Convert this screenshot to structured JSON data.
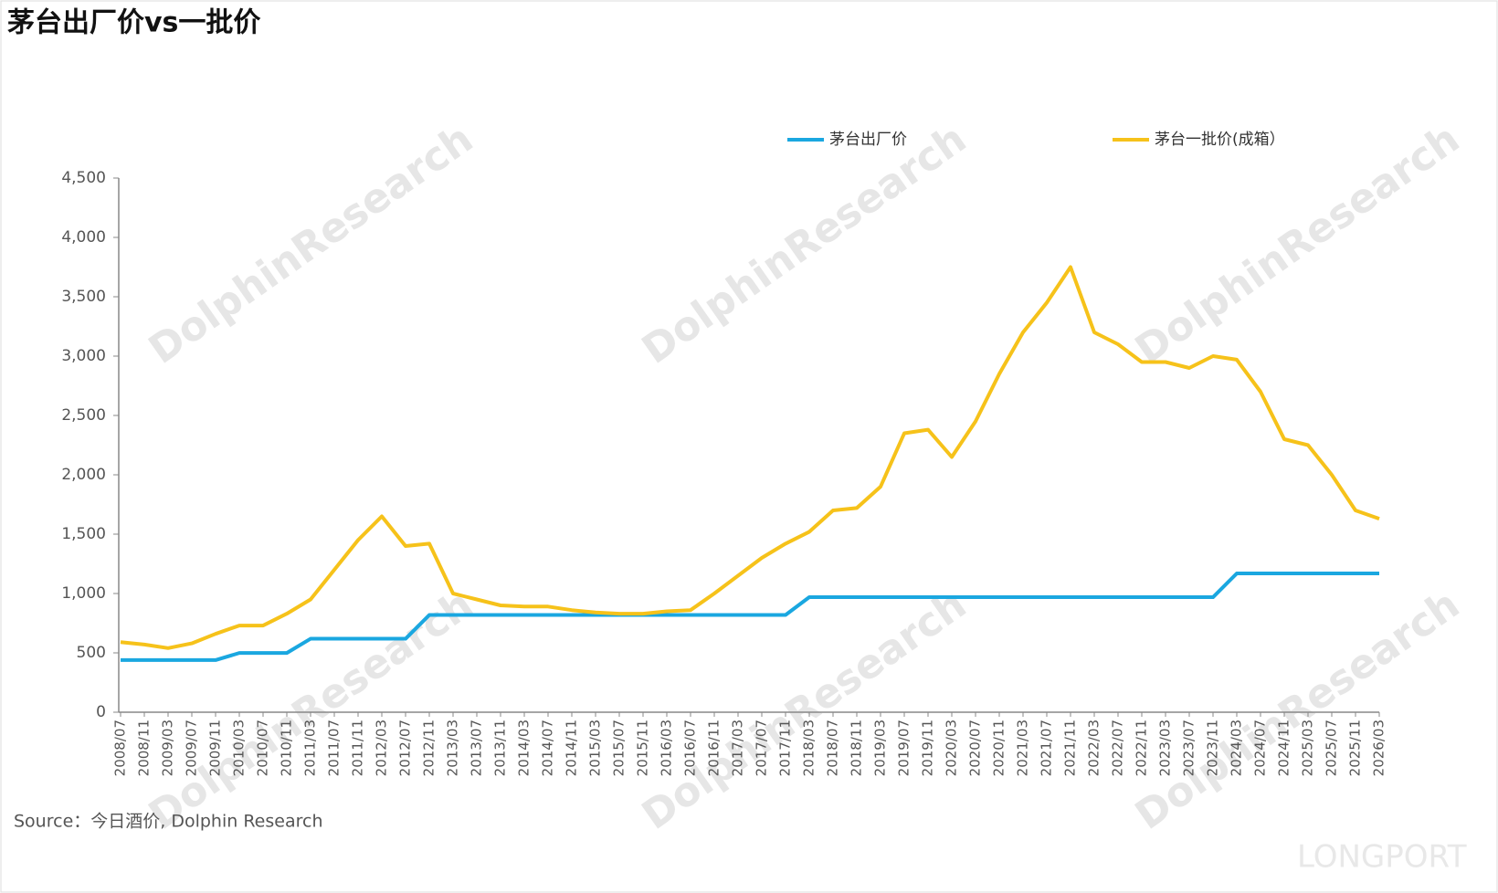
{
  "chart_data": {
    "type": "line",
    "title": "茅台出厂价vs一批价",
    "source": "Source：今日酒价, Dolphin Research",
    "watermark": "DolphinResearch",
    "brand": "LONGPORT",
    "categories": [
      "2008/07",
      "2008/11",
      "2009/03",
      "2009/07",
      "2009/11",
      "2010/03",
      "2010/07",
      "2010/11",
      "2011/03",
      "2011/07",
      "2011/11",
      "2012/03",
      "2012/07",
      "2012/11",
      "2013/03",
      "2013/07",
      "2013/11",
      "2014/03",
      "2014/07",
      "2014/11",
      "2015/03",
      "2015/07",
      "2015/11",
      "2016/03",
      "2016/07",
      "2016/11",
      "2017/03",
      "2017/07",
      "2017/11",
      "2018/03",
      "2018/07",
      "2018/11",
      "2019/03",
      "2019/07",
      "2019/11",
      "2020/03",
      "2020/07",
      "2020/11",
      "2021/03",
      "2021/07",
      "2021/11",
      "2022/03",
      "2022/07",
      "2022/11",
      "2023/03",
      "2023/07",
      "2023/11",
      "2024/03",
      "2024/07",
      "2024/11",
      "2025/03",
      "2025/07",
      "2025/11",
      "2026/03"
    ],
    "series": [
      {
        "name": "茅台出厂价",
        "color": "#1aa7e0",
        "values": [
          439,
          439,
          439,
          439,
          439,
          499,
          499,
          499,
          619,
          619,
          619,
          619,
          619,
          819,
          819,
          819,
          819,
          819,
          819,
          819,
          819,
          819,
          819,
          819,
          819,
          819,
          819,
          819,
          819,
          969,
          969,
          969,
          969,
          969,
          969,
          969,
          969,
          969,
          969,
          969,
          969,
          969,
          969,
          969,
          969,
          969,
          969,
          1169,
          1169,
          1169,
          1169,
          1169,
          1169,
          1169
        ]
      },
      {
        "name": "茅台一批价(成箱）",
        "color": "#f6c21a",
        "values": [
          590,
          570,
          540,
          580,
          660,
          730,
          730,
          830,
          950,
          1200,
          1450,
          1650,
          1400,
          1420,
          1000,
          950,
          900,
          890,
          890,
          860,
          840,
          830,
          830,
          850,
          860,
          1000,
          1150,
          1300,
          1420,
          1520,
          1700,
          1720,
          1900,
          2350,
          2380,
          2150,
          2450,
          2850,
          3200,
          3450,
          3750,
          3200,
          3100,
          2950,
          2950,
          2900,
          3000,
          2970,
          2700,
          2300,
          2250,
          2000,
          1700,
          1630
        ]
      }
    ],
    "ylim": [
      0,
      4500
    ],
    "yticks": [
      0,
      500,
      {
        "value": 1000,
        "label": "1,000"
      },
      {
        "value": 1500,
        "label": "1,500"
      },
      {
        "value": 2000,
        "label": "2,000"
      },
      {
        "value": 2500,
        "label": "2,500"
      },
      {
        "value": 3000,
        "label": "3,000"
      },
      {
        "value": 3500,
        "label": "3,500"
      },
      {
        "value": 4000,
        "label": "4,000"
      },
      {
        "value": 4500,
        "label": "4,500"
      }
    ]
  }
}
